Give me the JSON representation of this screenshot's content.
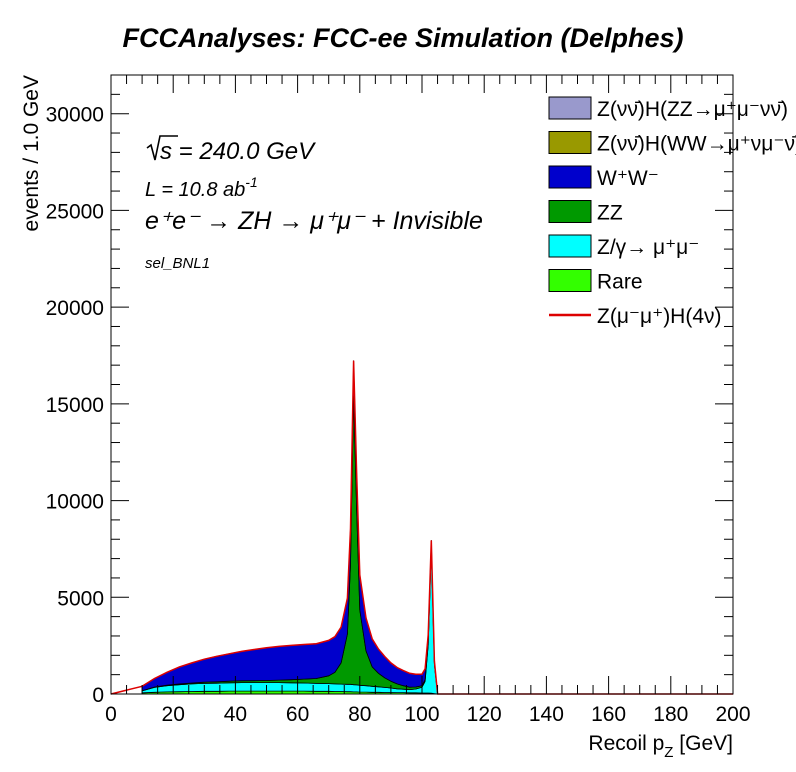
{
  "chart_data": {
    "type": "histogram-stacked",
    "title": "FCCAnalyses: FCC-ee Simulation (Delphes)",
    "xlabel": "Recoil p",
    "xlabel_sub": "Z",
    "xlabel_unit": " [GeV]",
    "ylabel": "events / 1.0 GeV",
    "xlim": [
      0,
      200
    ],
    "ylim": [
      0,
      32000
    ],
    "x_ticks": [
      0,
      20,
      40,
      60,
      80,
      100,
      120,
      140,
      160,
      180,
      200
    ],
    "y_ticks": [
      0,
      5000,
      10000,
      15000,
      20000,
      25000,
      30000
    ],
    "annotations": {
      "sqrt_s": "s = 240.0 GeV",
      "lumi": "L = 10.8 ab",
      "lumi_exp": "-1",
      "process": "e⁺e⁻ → ZH → μ⁺μ⁻ + Invisible",
      "selection": "sel_BNL1"
    },
    "legend_placement": "top-right",
    "x": [
      10,
      14,
      18,
      22,
      26,
      30,
      34,
      38,
      42,
      46,
      50,
      54,
      58,
      62,
      66,
      70,
      72,
      74,
      76,
      77,
      78,
      79,
      80,
      82,
      84,
      86,
      88,
      90,
      92,
      94,
      96,
      98,
      100,
      101,
      102,
      103,
      104,
      105,
      106
    ],
    "series": [
      {
        "name": "Rare",
        "color": "#33ff00",
        "values": [
          60,
          90,
          110,
          120,
          130,
          140,
          140,
          150,
          150,
          150,
          150,
          150,
          150,
          150,
          140,
          140,
          130,
          130,
          120,
          120,
          110,
          110,
          100,
          100,
          90,
          90,
          80,
          80,
          70,
          70,
          60,
          60,
          50,
          50,
          50,
          40,
          20,
          0,
          0
        ]
      },
      {
        "name": "Z/γ→ μ⁺μ⁻",
        "color": "#00ffff",
        "values": [
          100,
          250,
          320,
          360,
          390,
          410,
          420,
          430,
          440,
          440,
          440,
          440,
          430,
          420,
          410,
          400,
          390,
          380,
          380,
          380,
          370,
          360,
          350,
          330,
          310,
          280,
          260,
          230,
          200,
          180,
          170,
          200,
          300,
          600,
          2500,
          7500,
          1500,
          0,
          0
        ]
      },
      {
        "name": "ZZ",
        "color": "#009900",
        "values": [
          10,
          20,
          30,
          40,
          50,
          60,
          70,
          80,
          90,
          100,
          110,
          130,
          160,
          200,
          250,
          400,
          600,
          1100,
          2600,
          6200,
          14900,
          9000,
          3900,
          1800,
          1000,
          700,
          500,
          350,
          250,
          180,
          120,
          100,
          80,
          100,
          100,
          150,
          80,
          0,
          0
        ]
      },
      {
        "name": "W⁺W⁻",
        "color": "#0000cc",
        "values": [
          230,
          440,
          660,
          880,
          1040,
          1190,
          1320,
          1420,
          1520,
          1610,
          1690,
          1740,
          1770,
          1790,
          1800,
          1830,
          1840,
          1850,
          1850,
          1850,
          1850,
          1830,
          1800,
          1700,
          1450,
          1250,
          1100,
          950,
          850,
          780,
          720,
          660,
          600,
          550,
          400,
          250,
          100,
          0,
          0
        ]
      },
      {
        "name": "Z(νν̄)H(WW→μ⁺νμ⁻ν̄)",
        "color": "#999900",
        "values": []
      },
      {
        "name": "Z(νν̄)H(ZZ→μ⁺μ⁻νν̄)",
        "color": "#9999cc",
        "values": []
      }
    ],
    "signal": {
      "name": "Z(μ⁻μ⁺)H(4ν)",
      "color": "#dd0000"
    }
  },
  "legend": [
    {
      "label": "Z(νν̄)H(ZZ→μ⁺μ⁻νν̄)",
      "color": "#9999cc",
      "kind": "box"
    },
    {
      "label": "Z(νν̄)H(WW→μ⁺νμ⁻ν̄)",
      "color": "#999900",
      "kind": "box"
    },
    {
      "label": "W⁺W⁻",
      "color": "#0000cc",
      "kind": "box"
    },
    {
      "label": "ZZ",
      "color": "#009900",
      "kind": "box"
    },
    {
      "label": "Z/γ→ μ⁺μ⁻",
      "color": "#00ffff",
      "kind": "box"
    },
    {
      "label": "Rare",
      "color": "#33ff00",
      "kind": "box"
    },
    {
      "label": "Z(μ⁻μ⁺)H(4ν)",
      "color": "#dd0000",
      "kind": "line"
    }
  ]
}
